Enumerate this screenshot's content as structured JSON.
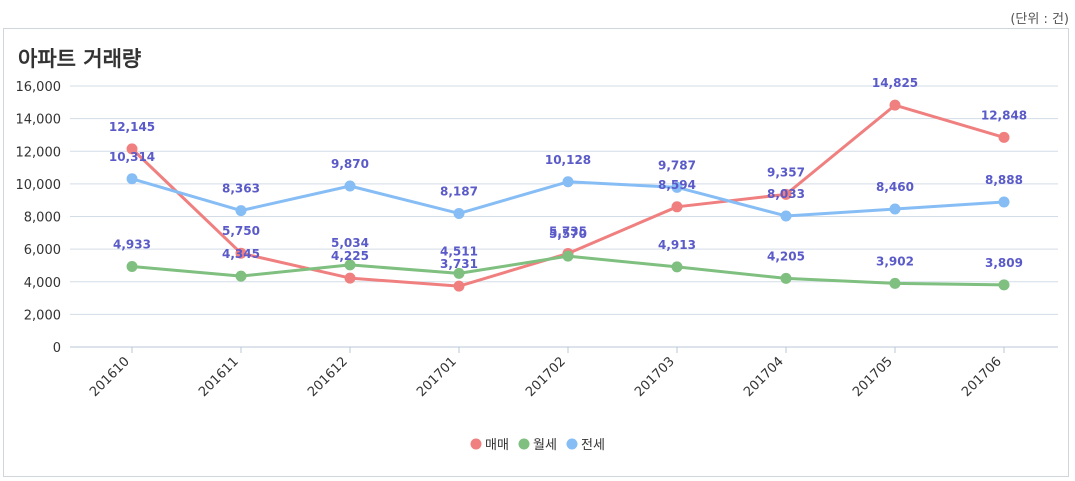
{
  "unit_label": "(단위 : 건)",
  "chart_data": {
    "type": "line",
    "title": "아파트 거래량",
    "xlabel": "",
    "ylabel": "",
    "categories": [
      "201610",
      "201611",
      "201612",
      "201701",
      "201702",
      "201703",
      "201704",
      "201705",
      "201706"
    ],
    "ylim": [
      0,
      16000
    ],
    "yticks": [
      0,
      2000,
      4000,
      6000,
      8000,
      10000,
      12000,
      14000,
      16000
    ],
    "grid": true,
    "legend_position": "bottom",
    "data_label_color": "#5a5ac8",
    "series": [
      {
        "name": "매매",
        "color": "#f08080",
        "values": [
          12145,
          5750,
          4225,
          3731,
          5735,
          8594,
          9357,
          14825,
          12848
        ]
      },
      {
        "name": "월세",
        "color": "#7fbf7f",
        "values": [
          4933,
          4345,
          5034,
          4511,
          5570,
          4913,
          4205,
          3902,
          3809
        ]
      },
      {
        "name": "전세",
        "color": "#87bdf5",
        "values": [
          10314,
          8363,
          9870,
          8187,
          10128,
          9787,
          8033,
          8460,
          8888
        ]
      }
    ]
  }
}
